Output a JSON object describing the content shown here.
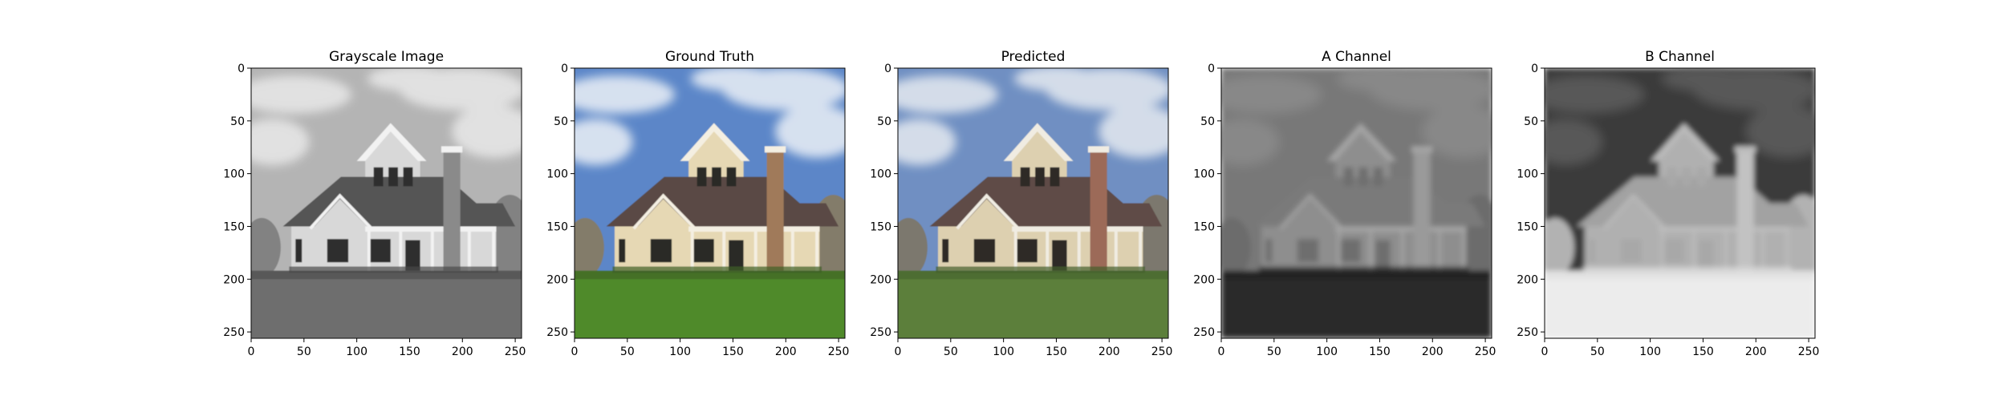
{
  "chart_data": [
    {
      "type": "image",
      "title": "Grayscale Image",
      "variant": "gray",
      "xlim": [
        0,
        256
      ],
      "ylim": [
        256,
        0
      ],
      "xticks": [
        0,
        50,
        100,
        150,
        200,
        250
      ],
      "yticks": [
        0,
        50,
        100,
        150,
        200,
        250
      ]
    },
    {
      "type": "image",
      "title": "Ground Truth",
      "variant": "color",
      "xlim": [
        0,
        256
      ],
      "ylim": [
        256,
        0
      ],
      "xticks": [
        0,
        50,
        100,
        150,
        200,
        250
      ],
      "yticks": [
        0,
        50,
        100,
        150,
        200,
        250
      ]
    },
    {
      "type": "image",
      "title": "Predicted",
      "variant": "predicted",
      "xlim": [
        0,
        256
      ],
      "ylim": [
        256,
        0
      ],
      "xticks": [
        0,
        50,
        100,
        150,
        200,
        250
      ],
      "yticks": [
        0,
        50,
        100,
        150,
        200,
        250
      ]
    },
    {
      "type": "image",
      "title": "A Channel",
      "variant": "achannel",
      "xlim": [
        0,
        256
      ],
      "ylim": [
        256,
        0
      ],
      "xticks": [
        0,
        50,
        100,
        150,
        200,
        250
      ],
      "yticks": [
        0,
        50,
        100,
        150,
        200,
        250
      ]
    },
    {
      "type": "image",
      "title": "B Channel",
      "variant": "bchannel",
      "xlim": [
        0,
        256
      ],
      "ylim": [
        256,
        0
      ],
      "xticks": [
        0,
        50,
        100,
        150,
        200,
        250
      ],
      "yticks": [
        0,
        50,
        100,
        150,
        200,
        250
      ]
    }
  ],
  "palettes": {
    "gray": {
      "sky": "#b4b4b4",
      "cloud": "#e6e6e6",
      "grass": "#6e6e6e",
      "wall": "#d8d8d8",
      "roof": "#555555",
      "chimney": "#8a8a8a",
      "trim": "#f2f2f2",
      "window": "#2e2e2e",
      "trees": "#7a7a7a",
      "shadow": "#4a4a4a"
    },
    "color": {
      "sky": "#5b86c8",
      "cloud": "#e4ebf4",
      "grass": "#4f8a2c",
      "wall": "#e6d8b4",
      "roof": "#5a4a45",
      "chimney": "#a07a5a",
      "trim": "#f4efe2",
      "window": "#2b2b26",
      "trees": "#8a7a5a",
      "shadow": "#3f5f25"
    },
    "predicted": {
      "sky": "#6f8fc2",
      "cloud": "#dfe5ee",
      "grass": "#5b7f3a",
      "wall": "#ddd0b0",
      "roof": "#5e4b47",
      "chimney": "#9c6a58",
      "trim": "#f0ece2",
      "window": "#2e2c28",
      "trees": "#7f7560",
      "shadow": "#44602c"
    },
    "achannel": {
      "sky": "#787878",
      "cloud": "#8a8a8a",
      "grass": "#2a2a2a",
      "wall": "#8e8e8e",
      "roof": "#7a7a7a",
      "chimney": "#9a9a9a",
      "trim": "#a4a4a4",
      "window": "#6e6e6e",
      "trees": "#6a6a6a",
      "shadow": "#1e1e1e"
    },
    "bchannel": {
      "sky": "#3a3a3a",
      "cloud": "#5c5c5c",
      "grass": "#ececec",
      "wall": "#b0b0b0",
      "roof": "#a2a2a2",
      "chimney": "#c2c2c2",
      "trim": "#bcbcbc",
      "window": "#a8a8a8",
      "trees": "#c8c8c8",
      "shadow": "#dcdcdc"
    }
  }
}
